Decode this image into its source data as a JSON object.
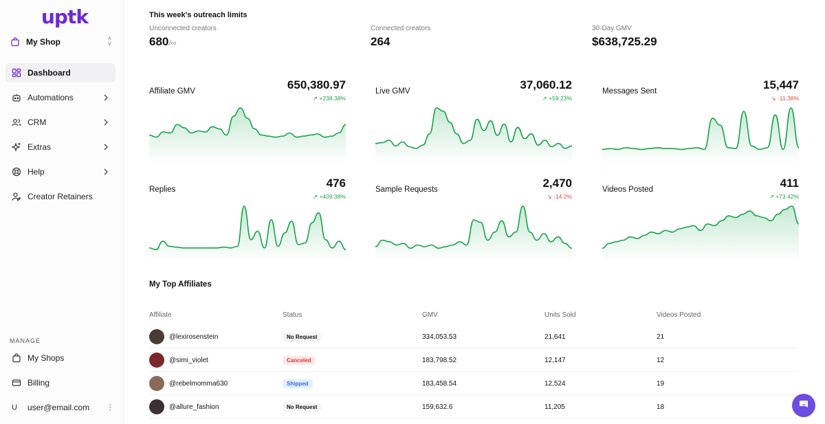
{
  "app": {
    "logo_text": "uptk"
  },
  "sidebar": {
    "shop": "My Shop",
    "nav": [
      {
        "label": "Dashboard",
        "icon": "grid-icon",
        "active": true
      },
      {
        "label": "Automations",
        "icon": "robot-icon"
      },
      {
        "label": "CRM",
        "icon": "users-icon"
      },
      {
        "label": "Extras",
        "icon": "sparkles-icon"
      },
      {
        "label": "Help",
        "icon": "help-icon"
      },
      {
        "label": "Creator Retainers",
        "icon": "user-edit-icon"
      }
    ],
    "manage_label": "MANAGE",
    "manage": [
      {
        "label": "My Shops",
        "icon": "bag-icon"
      },
      {
        "label": "Billing",
        "icon": "card-icon"
      }
    ],
    "user": {
      "initial": "U",
      "email": "user@email.com"
    }
  },
  "limits": {
    "title": "This week's outreach limits",
    "unconnected": {
      "caption": "Unconnected creators",
      "value": "680",
      "suffix": "/∞"
    },
    "connected": {
      "caption": "Connected creators",
      "value": "264"
    },
    "gmv30": {
      "caption": "30-Day GMV",
      "value": "$638,725.29"
    }
  },
  "metrics": [
    {
      "title": "Affiliate GMV",
      "value": "650,380.97",
      "change": "+238.38%",
      "direction": "up",
      "series": [
        22,
        20,
        25,
        24,
        32,
        29,
        24,
        26,
        25,
        30,
        28,
        22,
        40,
        48,
        38,
        28,
        22,
        21,
        20,
        21,
        24,
        20,
        21,
        22,
        23,
        20,
        21,
        24,
        32
      ]
    },
    {
      "title": "Live GMV",
      "value": "37,060.12",
      "change": "+59.23%",
      "direction": "up",
      "series": [
        18,
        19,
        22,
        15,
        20,
        14,
        12,
        16,
        30,
        62,
        58,
        44,
        30,
        18,
        22,
        48,
        34,
        46,
        28,
        42,
        20,
        38,
        24,
        30,
        16,
        22,
        14,
        18,
        12,
        15
      ]
    },
    {
      "title": "Messages Sent",
      "value": "15,447",
      "change": "-11.38%",
      "direction": "down",
      "series": [
        10,
        11,
        10,
        12,
        11,
        10,
        11,
        12,
        11,
        11,
        10,
        11,
        12,
        10,
        46,
        38,
        12,
        11,
        54,
        14,
        10,
        12,
        50,
        10,
        58,
        12
      ]
    },
    {
      "title": "Replies",
      "value": "476",
      "change": "+409.38%",
      "direction": "up",
      "series": [
        10,
        8,
        18,
        12,
        11,
        10,
        10,
        10,
        10,
        10,
        10,
        11,
        10,
        12,
        60,
        20,
        30,
        10,
        44,
        12,
        28,
        42,
        14,
        16,
        40,
        52,
        20,
        10,
        18,
        8
      ]
    },
    {
      "title": "Sample Requests",
      "value": "2,470",
      "change": "-14.2%",
      "direction": "down",
      "series": [
        12,
        20,
        18,
        14,
        16,
        10,
        14,
        12,
        14,
        10,
        12,
        14,
        18,
        14,
        45,
        42,
        20,
        30,
        44,
        24,
        30,
        62,
        30,
        20,
        28,
        18,
        24,
        16,
        10
      ]
    },
    {
      "title": "Videos Posted",
      "value": "411",
      "change": "+73.42%",
      "direction": "up",
      "series": [
        10,
        16,
        18,
        20,
        24,
        22,
        26,
        30,
        28,
        32,
        30,
        34,
        36,
        38,
        32,
        40,
        38,
        44,
        50,
        48,
        52,
        56,
        50,
        48,
        44,
        52,
        58,
        62,
        40
      ]
    }
  ],
  "affiliates": {
    "title": "My Top Affiliates",
    "columns": [
      "Affiliate",
      "Status",
      "GMV",
      "Units Sold",
      "Videos Posted"
    ],
    "rows": [
      {
        "name": "@lexirosenstein",
        "status": "No Request",
        "status_kind": "none",
        "gmv": "334,053.53",
        "units": "21,641",
        "videos": "21",
        "avatar_color": "#4a3b33"
      },
      {
        "name": "@simi_violet",
        "status": "Canceled",
        "status_kind": "cancel",
        "gmv": "183,798.52",
        "units": "12,147",
        "videos": "12",
        "avatar_color": "#7a2a2a"
      },
      {
        "name": "@rebelmomma630",
        "status": "Shipped",
        "status_kind": "ship",
        "gmv": "183,458.54",
        "units": "12,524",
        "videos": "19",
        "avatar_color": "#8a6b5a"
      },
      {
        "name": "@allure_fashion",
        "status": "No Request",
        "status_kind": "none",
        "gmv": "159,632.6",
        "units": "11,205",
        "videos": "18",
        "avatar_color": "#3d3030"
      }
    ]
  },
  "colors": {
    "accent": "#6d28d9",
    "spark": "#16a34a",
    "chat": "#6d4de0"
  }
}
